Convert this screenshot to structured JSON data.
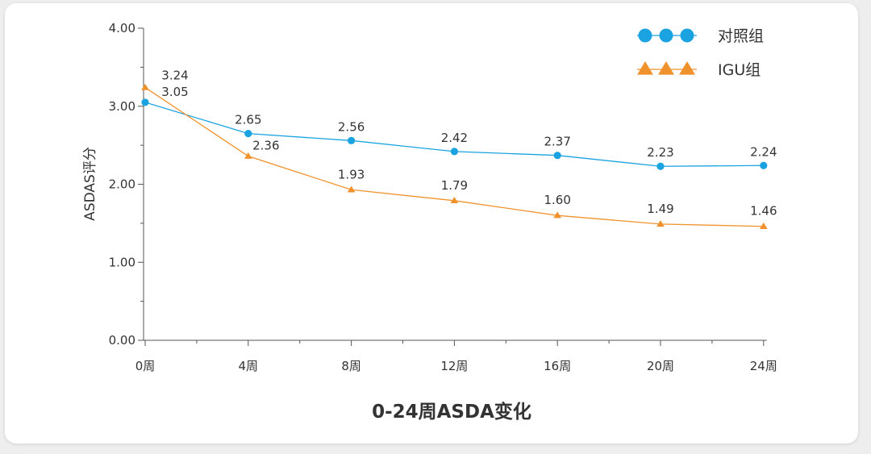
{
  "chart_data": {
    "type": "line",
    "title": "0-24周ASDA变化",
    "xlabel": "",
    "ylabel": "ASDAS评分",
    "categories": [
      "0周",
      "4周",
      "8周",
      "12周",
      "16周",
      "20周",
      "24周"
    ],
    "ylim": [
      0,
      4
    ],
    "yticks": [
      "0.00",
      "1.00",
      "2.00",
      "3.00",
      "4.00"
    ],
    "grid": false,
    "legend": "top-right",
    "series": [
      {
        "name": "对照组",
        "marker": "circle",
        "color": "#1aa3e0",
        "values": [
          3.05,
          2.65,
          2.56,
          2.42,
          2.37,
          2.23,
          2.24
        ],
        "labels": [
          "3.05",
          "2.65",
          "2.56",
          "2.42",
          "2.37",
          "2.23",
          "2.24"
        ]
      },
      {
        "name": "IGU组",
        "marker": "triangle",
        "color": "#f0922c",
        "values": [
          3.24,
          2.36,
          1.93,
          1.79,
          1.6,
          1.49,
          1.46
        ],
        "labels": [
          "3.24",
          "2.36",
          "1.93",
          "1.79",
          "1.60",
          "1.49",
          "1.46"
        ]
      }
    ]
  }
}
